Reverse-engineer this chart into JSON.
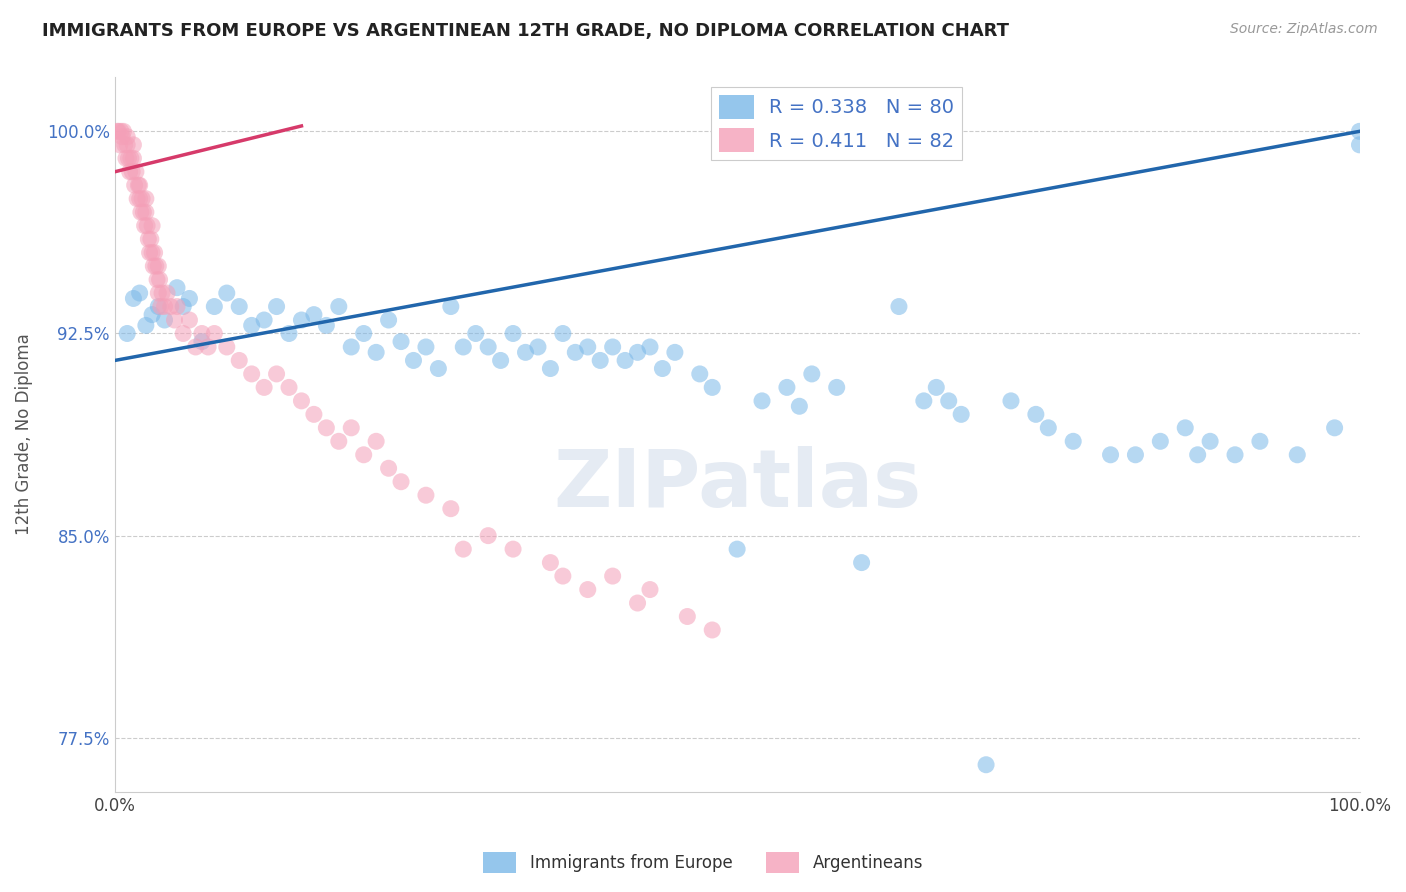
{
  "title": "IMMIGRANTS FROM EUROPE VS ARGENTINEAN 12TH GRADE, NO DIPLOMA CORRELATION CHART",
  "source_text": "Source: ZipAtlas.com",
  "ylabel": "12th Grade, No Diploma",
  "watermark": "ZIPatlas",
  "xlim": [
    0.0,
    100.0
  ],
  "ylim": [
    75.5,
    102.0
  ],
  "yticks": [
    77.5,
    85.0,
    92.5,
    100.0
  ],
  "xtick_labels": [
    "0.0%",
    "100.0%"
  ],
  "ytick_labels": [
    "77.5%",
    "85.0%",
    "92.5%",
    "100.0%"
  ],
  "blue_R": 0.338,
  "blue_N": 80,
  "pink_R": 0.411,
  "pink_N": 82,
  "blue_color": "#7bb8e8",
  "pink_color": "#f4a0b8",
  "blue_line_color": "#2166ac",
  "pink_line_color": "#d63a6a",
  "legend_blue_label": "Immigrants from Europe",
  "legend_pink_label": "Argentineans",
  "blue_line_x0": 0.0,
  "blue_line_y0": 91.5,
  "blue_line_x1": 100.0,
  "blue_line_y1": 100.0,
  "pink_line_x0": 0.0,
  "pink_line_y0": 98.5,
  "pink_line_x1": 15.0,
  "pink_line_y1": 100.2,
  "blue_scatter_x": [
    1.0,
    1.5,
    2.0,
    2.5,
    3.0,
    3.5,
    4.0,
    5.0,
    5.5,
    6.0,
    7.0,
    8.0,
    9.0,
    10.0,
    11.0,
    12.0,
    13.0,
    14.0,
    15.0,
    16.0,
    17.0,
    18.0,
    19.0,
    20.0,
    21.0,
    22.0,
    23.0,
    24.0,
    25.0,
    26.0,
    27.0,
    28.0,
    29.0,
    30.0,
    31.0,
    32.0,
    33.0,
    34.0,
    35.0,
    36.0,
    37.0,
    38.0,
    39.0,
    40.0,
    41.0,
    42.0,
    43.0,
    44.0,
    45.0,
    47.0,
    48.0,
    50.0,
    52.0,
    54.0,
    55.0,
    56.0,
    58.0,
    60.0,
    63.0,
    65.0,
    66.0,
    67.0,
    68.0,
    70.0,
    72.0,
    74.0,
    75.0,
    77.0,
    80.0,
    82.0,
    84.0,
    86.0,
    87.0,
    88.0,
    90.0,
    92.0,
    95.0,
    98.0,
    100.0,
    100.0
  ],
  "blue_scatter_y": [
    92.5,
    93.8,
    94.0,
    92.8,
    93.2,
    93.5,
    93.0,
    94.2,
    93.5,
    93.8,
    92.2,
    93.5,
    94.0,
    93.5,
    92.8,
    93.0,
    93.5,
    92.5,
    93.0,
    93.2,
    92.8,
    93.5,
    92.0,
    92.5,
    91.8,
    93.0,
    92.2,
    91.5,
    92.0,
    91.2,
    93.5,
    92.0,
    92.5,
    92.0,
    91.5,
    92.5,
    91.8,
    92.0,
    91.2,
    92.5,
    91.8,
    92.0,
    91.5,
    92.0,
    91.5,
    91.8,
    92.0,
    91.2,
    91.8,
    91.0,
    90.5,
    84.5,
    90.0,
    90.5,
    89.8,
    91.0,
    90.5,
    84.0,
    93.5,
    90.0,
    90.5,
    90.0,
    89.5,
    76.5,
    90.0,
    89.5,
    89.0,
    88.5,
    88.0,
    88.0,
    88.5,
    89.0,
    88.0,
    88.5,
    88.0,
    88.5,
    88.0,
    89.0,
    99.5,
    100.0
  ],
  "pink_scatter_x": [
    0.2,
    0.3,
    0.4,
    0.5,
    0.6,
    0.7,
    0.8,
    0.9,
    1.0,
    1.0,
    1.1,
    1.2,
    1.3,
    1.4,
    1.5,
    1.5,
    1.6,
    1.7,
    1.8,
    1.9,
    2.0,
    2.0,
    2.1,
    2.2,
    2.3,
    2.4,
    2.5,
    2.5,
    2.6,
    2.7,
    2.8,
    2.9,
    3.0,
    3.0,
    3.1,
    3.2,
    3.3,
    3.4,
    3.5,
    3.5,
    3.6,
    3.7,
    3.8,
    4.0,
    4.2,
    4.5,
    4.8,
    5.0,
    5.5,
    6.0,
    6.5,
    7.0,
    7.5,
    8.0,
    9.0,
    10.0,
    11.0,
    12.0,
    13.0,
    14.0,
    15.0,
    16.0,
    17.0,
    18.0,
    19.0,
    20.0,
    21.0,
    22.0,
    23.0,
    25.0,
    27.0,
    28.0,
    30.0,
    32.0,
    35.0,
    36.0,
    38.0,
    40.0,
    42.0,
    43.0,
    46.0,
    48.0
  ],
  "pink_scatter_y": [
    100.0,
    100.0,
    99.5,
    100.0,
    99.8,
    100.0,
    99.5,
    99.0,
    99.5,
    99.8,
    99.0,
    98.5,
    99.0,
    98.5,
    99.0,
    99.5,
    98.0,
    98.5,
    97.5,
    98.0,
    97.5,
    98.0,
    97.0,
    97.5,
    97.0,
    96.5,
    97.0,
    97.5,
    96.5,
    96.0,
    95.5,
    96.0,
    96.5,
    95.5,
    95.0,
    95.5,
    95.0,
    94.5,
    95.0,
    94.0,
    94.5,
    93.5,
    94.0,
    93.5,
    94.0,
    93.5,
    93.0,
    93.5,
    92.5,
    93.0,
    92.0,
    92.5,
    92.0,
    92.5,
    92.0,
    91.5,
    91.0,
    90.5,
    91.0,
    90.5,
    90.0,
    89.5,
    89.0,
    88.5,
    89.0,
    88.0,
    88.5,
    87.5,
    87.0,
    86.5,
    86.0,
    84.5,
    85.0,
    84.5,
    84.0,
    83.5,
    83.0,
    83.5,
    82.5,
    83.0,
    82.0,
    81.5
  ]
}
